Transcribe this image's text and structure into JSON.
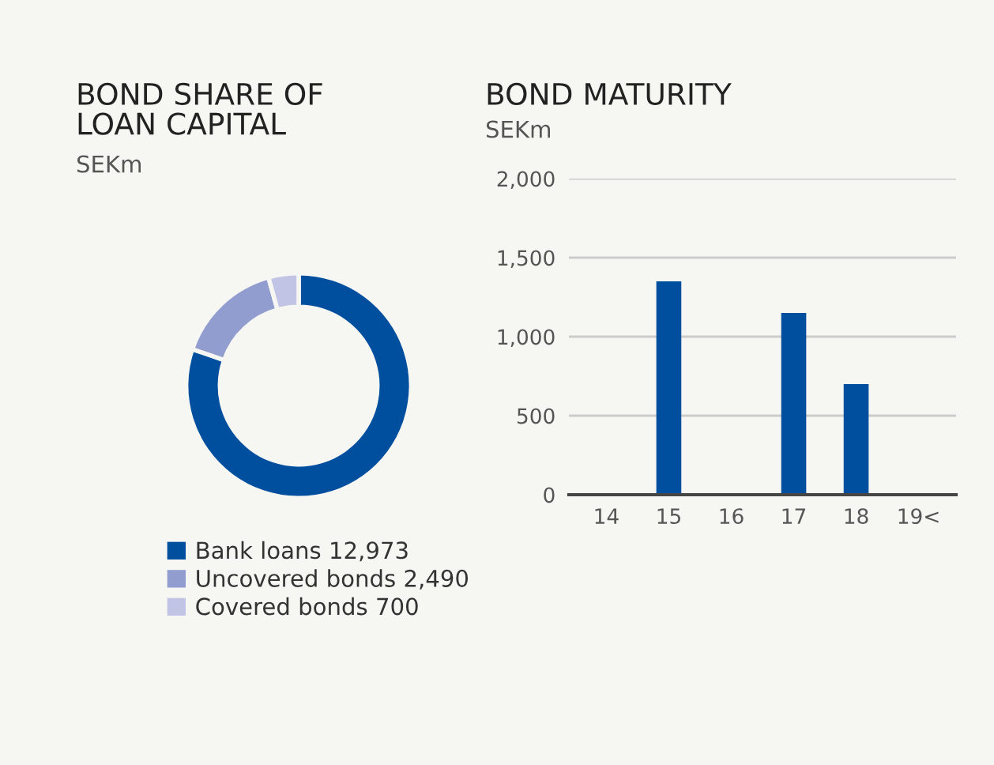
{
  "chart_data": [
    {
      "type": "donut",
      "title": "BOND SHARE OF\nLOAN CAPITAL",
      "subtitle": "SEKm",
      "categories": [
        "Bank loans",
        "Uncovered bonds",
        "Covered bonds"
      ],
      "values": [
        12973,
        2490,
        700
      ],
      "value_labels": [
        "12,973",
        "2,490",
        "700"
      ],
      "colors": [
        "#004f9f",
        "#929dcf",
        "#c1c4e4"
      ],
      "legend": "bottom"
    },
    {
      "type": "bar",
      "title": "BOND MATURITY",
      "subtitle": "SEKm",
      "categories": [
        "14",
        "15",
        "16",
        "17",
        "18",
        "19<"
      ],
      "values": [
        0,
        1350,
        0,
        1150,
        700,
        0
      ],
      "color": "#004f9f",
      "ylim": [
        0,
        2000
      ],
      "yticks": [
        {
          "value": 0,
          "label": "0"
        },
        {
          "value": 500,
          "label": "500"
        },
        {
          "value": 1000,
          "label": "1,000"
        },
        {
          "value": 1500,
          "label": "1,500"
        },
        {
          "value": 2000,
          "label": "2,000"
        }
      ],
      "grid": "y"
    }
  ]
}
